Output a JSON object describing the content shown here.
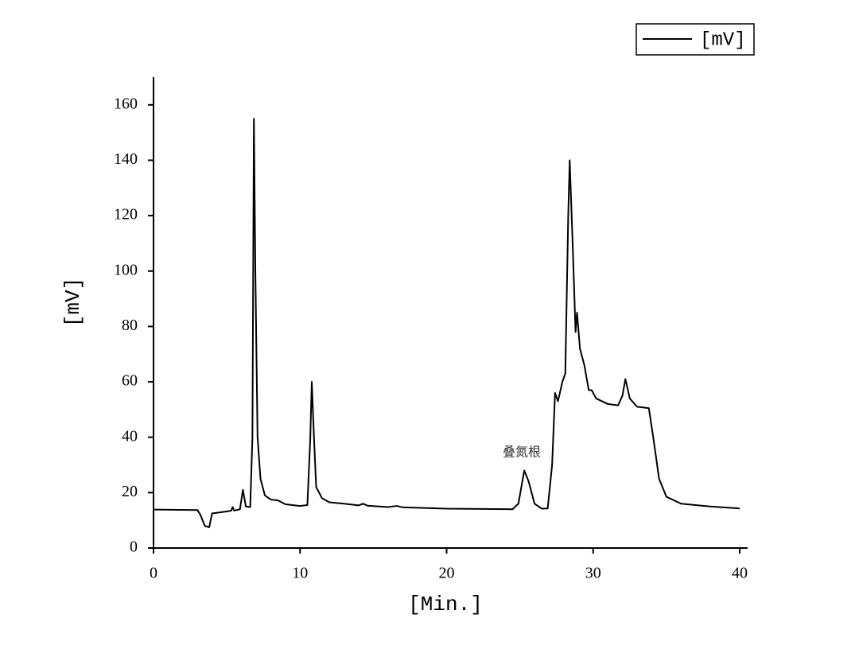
{
  "chart_data": {
    "type": "line",
    "x_label": "[Min.]",
    "y_label": "[mV]",
    "annotation": "叠氮根",
    "xlim": [
      0,
      40
    ],
    "xticks": [
      0,
      10,
      20,
      30,
      40
    ],
    "ylim": [
      0,
      170
    ],
    "yticks": [
      0,
      20,
      40,
      60,
      80,
      100,
      120,
      140,
      160
    ],
    "grid": false,
    "legend": "upper right",
    "x": [
      0,
      3.0,
      3.2,
      3.5,
      3.8,
      4.0,
      5.0,
      5.3,
      5.4,
      5.5,
      5.9,
      6.1,
      6.3,
      6.6,
      6.75,
      6.85,
      6.95,
      7.1,
      7.3,
      7.6,
      8.0,
      8.5,
      9.0,
      10.0,
      10.5,
      10.7,
      10.8,
      10.95,
      11.1,
      11.5,
      12.0,
      13.0,
      14.0,
      14.3,
      14.6,
      16.0,
      16.6,
      17.0,
      20.0,
      24.5,
      24.9,
      25.3,
      25.6,
      26.0,
      26.5,
      26.9,
      27.2,
      27.4,
      27.6,
      27.9,
      28.1,
      28.3,
      28.4,
      28.6,
      28.8,
      28.9,
      29.1,
      29.4,
      29.7,
      29.9,
      30.2,
      31.0,
      31.7,
      32.0,
      32.2,
      32.5,
      33.0,
      33.8,
      34.1,
      34.5,
      35.0,
      36.0,
      38.0,
      40.0
    ],
    "series": [
      {
        "name": "[mV]",
        "color": "#000000",
        "values": [
          13.9,
          13.7,
          12,
          8,
          7.5,
          12.5,
          13.2,
          13.5,
          14.8,
          13.5,
          14,
          21,
          15,
          14.8,
          40,
          155,
          100,
          40,
          25,
          19,
          17.5,
          17.2,
          15.8,
          15.2,
          15.5,
          40,
          60,
          40,
          22,
          18,
          16.5,
          16,
          15.4,
          16,
          15.3,
          14.8,
          15.2,
          14.7,
          14.2,
          14,
          16,
          28,
          24,
          16,
          14.2,
          14.3,
          30,
          56,
          53,
          60,
          63,
          120,
          140,
          110,
          78,
          85,
          72,
          66,
          57,
          57,
          54,
          52,
          51.5,
          55,
          61,
          54,
          51,
          50.5,
          40,
          25,
          18.5,
          16,
          15,
          14.3
        ]
      }
    ]
  }
}
